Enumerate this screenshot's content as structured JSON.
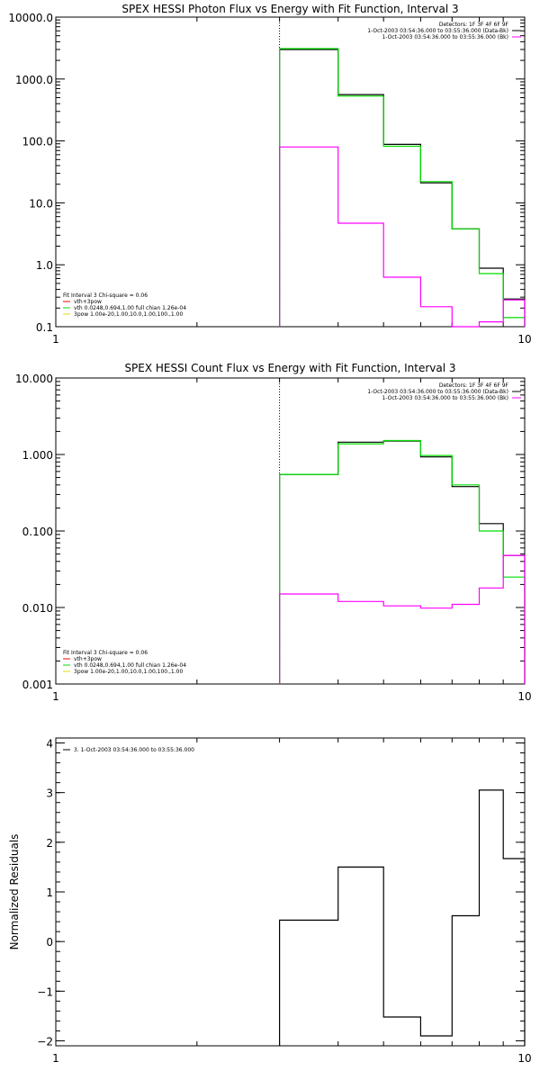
{
  "chart_data": [
    {
      "type": "line",
      "title": "SPEX HESSI Photon Flux vs Energy with Fit Function, Interval 3",
      "xscale": "log",
      "yscale": "log",
      "xlim": [
        1,
        10
      ],
      "ylim": [
        0.1,
        10000
      ],
      "x_ticks": [
        {
          "v": 1,
          "label": "1"
        },
        {
          "v": 10,
          "label": "10"
        }
      ],
      "y_ticks": [
        {
          "v": 10000,
          "label": "10000.0"
        },
        {
          "v": 1000,
          "label": "1000.0"
        },
        {
          "v": 100,
          "label": "100.0"
        },
        {
          "v": 10,
          "label": "10.0"
        },
        {
          "v": 1,
          "label": "1.0"
        },
        {
          "v": 0.1,
          "label": "0.1"
        }
      ],
      "vline_x": 3.0,
      "legend_topright": [
        {
          "text": "Detectors: 1F 3F 4F 6F 9F",
          "color": ""
        },
        {
          "text": "1-Oct-2003 03:54:36.000 to 03:55:36.000 (Data-Bk)",
          "color": "#000000"
        },
        {
          "text": "1-Oct-2003 03:54:36.000 to 03:55:36.000 (Bk)",
          "color": "#ff00ff"
        }
      ],
      "legend_bottomleft": [
        {
          "text": "Fit Interval 3   Chi-square = 0.06",
          "color": ""
        },
        {
          "text": "vth+3pow",
          "color": "#ff0000"
        },
        {
          "text": "vth 0.0248,0.694,1.00  full chian 1.26e-04",
          "color": "#00dd00"
        },
        {
          "text": "3pow 1.00e-20,1.00,10.0,1.00,100.,1.00",
          "color": "#dddd00"
        }
      ],
      "series": [
        {
          "color": "#000000",
          "edges": [
            3.0,
            4.0,
            5.0,
            6.0,
            7.0,
            8.0,
            9.0,
            10.0
          ],
          "values": [
            3000,
            560,
            88,
            21,
            3.8,
            0.88,
            0.28
          ]
        },
        {
          "color": "#00dd00",
          "edges": [
            3.0,
            4.0,
            5.0,
            6.0,
            7.0,
            8.0,
            9.0,
            10.0
          ],
          "values": [
            3100,
            530,
            82,
            22,
            3.8,
            0.72,
            0.14
          ]
        },
        {
          "color": "#ff00ff",
          "edges": [
            3.0,
            4.0,
            5.0,
            6.0,
            7.0,
            8.0,
            9.0,
            10.0
          ],
          "values": [
            80,
            4.7,
            0.63,
            0.21,
            0.095,
            0.12,
            0.27
          ]
        }
      ]
    },
    {
      "type": "line",
      "title": "SPEX HESSI Count Flux vs Energy with Fit Function, Interval 3",
      "xscale": "log",
      "yscale": "log",
      "xlim": [
        1,
        10
      ],
      "ylim": [
        0.001,
        10
      ],
      "x_ticks": [
        {
          "v": 1,
          "label": "1"
        },
        {
          "v": 10,
          "label": "10"
        }
      ],
      "y_ticks": [
        {
          "v": 10,
          "label": "10.000"
        },
        {
          "v": 1,
          "label": "1.000"
        },
        {
          "v": 0.1,
          "label": "0.100"
        },
        {
          "v": 0.01,
          "label": "0.010"
        },
        {
          "v": 0.001,
          "label": "0.001"
        }
      ],
      "vline_x": 3.0,
      "legend_topright": [
        {
          "text": "Detectors: 1F 3F 4F 6F 9F",
          "color": ""
        },
        {
          "text": "1-Oct-2003 03:54:36.000 to 03:55:36.000 (Data-Bk)",
          "color": "#000000"
        },
        {
          "text": "1-Oct-2003 03:54:36.000 to 03:55:36.000 (Bk)",
          "color": "#ff00ff"
        }
      ],
      "legend_bottomleft": [
        {
          "text": "Fit Interval 3   Chi-square = 0.06",
          "color": ""
        },
        {
          "text": "vth+3pow",
          "color": "#ff0000"
        },
        {
          "text": "vth 0.0248,0.694,1.00  full chian 1.26e-04",
          "color": "#00dd00"
        },
        {
          "text": "3pow 1.00e-20,1.00,10.0,1.00,100.,1.00",
          "color": "#dddd00"
        }
      ],
      "series": [
        {
          "color": "#000000",
          "edges": [
            3.0,
            4.0,
            5.0,
            6.0,
            7.0,
            8.0,
            9.0,
            10.0
          ],
          "values": [
            0.55,
            1.45,
            1.5,
            0.93,
            0.38,
            0.125,
            0.048
          ]
        },
        {
          "color": "#00dd00",
          "edges": [
            3.0,
            4.0,
            5.0,
            6.0,
            7.0,
            8.0,
            9.0,
            10.0
          ],
          "values": [
            0.55,
            1.38,
            1.52,
            0.97,
            0.4,
            0.1,
            0.025
          ]
        },
        {
          "color": "#ff00ff",
          "edges": [
            3.0,
            4.0,
            5.0,
            6.0,
            7.0,
            8.0,
            9.0,
            10.0
          ],
          "values": [
            0.015,
            0.012,
            0.0105,
            0.0098,
            0.011,
            0.018,
            0.048
          ]
        }
      ]
    },
    {
      "type": "line",
      "title": "",
      "xscale": "log",
      "yscale": "linear",
      "xlim": [
        1,
        10
      ],
      "ylim": [
        -2.1,
        4.1
      ],
      "ylabel": "Normalized Residuals",
      "x_ticks": [
        {
          "v": 1,
          "label": "1"
        },
        {
          "v": 10,
          "label": "10"
        }
      ],
      "y_ticks": [
        {
          "v": 4,
          "label": "4"
        },
        {
          "v": 3,
          "label": "3"
        },
        {
          "v": 2,
          "label": "2"
        },
        {
          "v": 1,
          "label": "1"
        },
        {
          "v": 0,
          "label": "0"
        },
        {
          "v": -1,
          "label": "−1"
        },
        {
          "v": -2,
          "label": "−2"
        }
      ],
      "legend_topleft": [
        {
          "text": "3.  1-Oct-2003 03:54:36.000 to 03:55:36.000",
          "color": "#000000"
        }
      ],
      "series": [
        {
          "color": "#000000",
          "edges": [
            3.0,
            4.0,
            5.0,
            6.0,
            7.0,
            8.0,
            9.0,
            10.0
          ],
          "values": [
            0.43,
            1.5,
            -1.52,
            -1.9,
            0.52,
            3.05,
            1.67
          ]
        }
      ]
    }
  ]
}
